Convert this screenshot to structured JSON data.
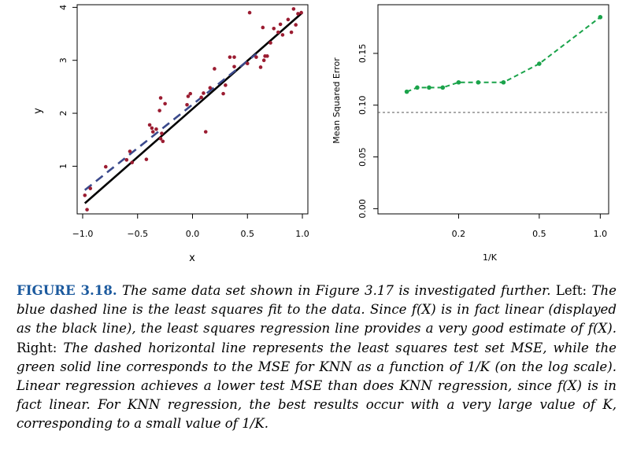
{
  "chart_data": [
    {
      "type": "scatter",
      "xlabel": "x",
      "ylabel": "y",
      "xlim": [
        -1.05,
        1.05
      ],
      "ylim": [
        0.1,
        4.05
      ],
      "xticks": [
        "−1.0",
        "−0.5",
        "0.0",
        "0.5",
        "1.0"
      ],
      "xtick_values": [
        -1.0,
        -0.5,
        0.0,
        0.5,
        1.0
      ],
      "yticks": [
        "1",
        "2",
        "3",
        "4"
      ],
      "ytick_values": [
        1,
        2,
        3,
        4
      ],
      "points": [
        [
          -0.96,
          0.18
        ],
        [
          -0.98,
          0.45
        ],
        [
          -0.93,
          0.58
        ],
        [
          -0.79,
          0.99
        ],
        [
          -0.6,
          1.12
        ],
        [
          -0.57,
          1.28
        ],
        [
          -0.55,
          1.07
        ],
        [
          -0.42,
          1.13
        ],
        [
          -0.39,
          1.78
        ],
        [
          -0.37,
          1.72
        ],
        [
          -0.36,
          1.65
        ],
        [
          -0.33,
          1.7
        ],
        [
          -0.3,
          2.05
        ],
        [
          -0.29,
          1.52
        ],
        [
          -0.28,
          1.62
        ],
        [
          -0.27,
          1.47
        ],
        [
          -0.29,
          2.29
        ],
        [
          -0.25,
          2.18
        ],
        [
          -0.05,
          2.16
        ],
        [
          -0.04,
          2.32
        ],
        [
          -0.02,
          2.37
        ],
        [
          0.08,
          2.3
        ],
        [
          0.1,
          2.38
        ],
        [
          0.12,
          1.65
        ],
        [
          0.16,
          2.48
        ],
        [
          0.2,
          2.84
        ],
        [
          0.28,
          2.37
        ],
        [
          0.3,
          2.53
        ],
        [
          0.34,
          3.06
        ],
        [
          0.38,
          3.06
        ],
        [
          0.38,
          2.88
        ],
        [
          0.5,
          2.94
        ],
        [
          0.52,
          3.9
        ],
        [
          0.58,
          3.06
        ],
        [
          0.62,
          2.87
        ],
        [
          0.64,
          3.62
        ],
        [
          0.65,
          3.0
        ],
        [
          0.66,
          3.08
        ],
        [
          0.68,
          3.08
        ],
        [
          0.71,
          3.33
        ],
        [
          0.74,
          3.6
        ],
        [
          0.78,
          3.53
        ],
        [
          0.8,
          3.68
        ],
        [
          0.82,
          3.48
        ],
        [
          0.87,
          3.77
        ],
        [
          0.9,
          3.53
        ],
        [
          0.92,
          3.97
        ],
        [
          0.94,
          3.67
        ],
        [
          0.96,
          3.88
        ],
        [
          0.99,
          3.9
        ]
      ],
      "series": [
        {
          "style": "solid",
          "color": "#000000",
          "x": [
            -0.98,
            1.0
          ],
          "y": [
            0.3,
            3.9
          ]
        },
        {
          "style": "dashed",
          "color": "#3b4a8c",
          "x": [
            -0.98,
            0.58
          ],
          "y": [
            0.55,
            3.12
          ]
        }
      ],
      "point_color": "#9b1c31"
    },
    {
      "type": "line",
      "xlabel": "1/K",
      "ylabel": "Mean Squared Error",
      "xscale": "log",
      "xlim": [
        0.08,
        1.1
      ],
      "ylim": [
        -0.005,
        0.197
      ],
      "xticks": [
        "0.2",
        "0.5",
        "1.0"
      ],
      "xtick_values": [
        0.2,
        0.5,
        1.0
      ],
      "yticks": [
        "0.00",
        "0.05",
        "0.10",
        "0.15"
      ],
      "ytick_values": [
        0.0,
        0.05,
        0.1,
        0.15
      ],
      "series": [
        {
          "color": "#1aa34a",
          "x": [
            0.111,
            0.125,
            0.143,
            0.167,
            0.2,
            0.25,
            0.333,
            0.5,
            1.0
          ],
          "y": [
            0.113,
            0.117,
            0.117,
            0.117,
            0.122,
            0.122,
            0.122,
            0.14,
            0.185
          ]
        }
      ],
      "hline": {
        "y": 0.093,
        "style": "dashed",
        "color": "#555555"
      }
    }
  ],
  "caption": {
    "label": "FIGURE 3.18.",
    "parts": [
      {
        "s": "i",
        "t": " The same data set shown in Figure 3.17 is investigated further."
      },
      {
        "s": "n",
        "t": " Left:"
      },
      {
        "s": "i",
        "t": " The blue dashed line is the least squares fit to the data. Since f(X) is in fact linear (displayed as the black line), the least squares regression line provides a very good estimate of f(X)."
      },
      {
        "s": "n",
        "t": " Right:"
      },
      {
        "s": "i",
        "t": " The dashed horizontal line represents the least squares test set MSE, while the green solid line corresponds to the MSE for KNN as a function of 1/K (on the log scale). Linear regression achieves a lower test MSE than does KNN regression, since f(X) is in fact linear. For KNN regression, the best results occur with a very large value of K, corresponding to a small value of 1/K."
      }
    ]
  }
}
